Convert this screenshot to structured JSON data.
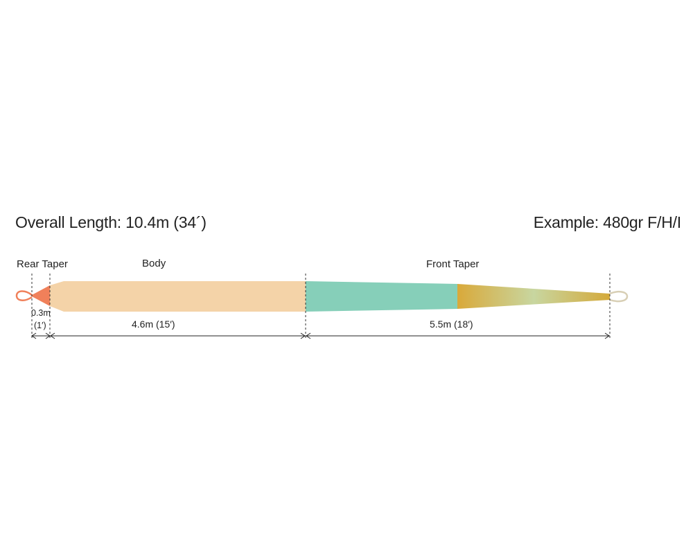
{
  "header": {
    "overall_length": "Overall Length: 10.4m (34´)",
    "example": "Example:  480gr F/H/I"
  },
  "segments": [
    {
      "label": "Rear Taper",
      "color": "#f0805a"
    },
    {
      "label": "Body",
      "color": "#f4d3a8"
    },
    {
      "label": "Front Taper",
      "color": "#86cfb9"
    }
  ],
  "tip_gradient": [
    "#d9a93a",
    "#c8d6a0",
    "#d4a93a"
  ],
  "loop_colors": {
    "rear": "#f0805a",
    "front": "#d8cfb5"
  },
  "dimensions": [
    {
      "line1": "0.3m",
      "line2": "(1′)"
    },
    {
      "label": "4.6m (15′)"
    },
    {
      "label": "5.5m (18′)"
    }
  ]
}
